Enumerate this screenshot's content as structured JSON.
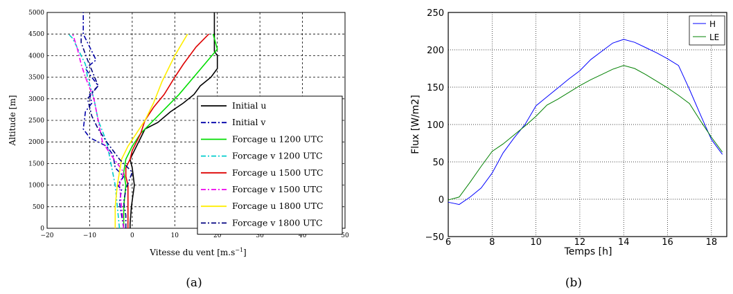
{
  "chart_data": [
    {
      "type": "line",
      "caption": "(a)",
      "xlabel": "Vitesse du vent [m.s",
      "xlabel_sup": "−1",
      "xlabel_end": "]",
      "ylabel": "Altitude [m]",
      "xlim": [
        -20,
        50
      ],
      "ylim": [
        0,
        5000
      ],
      "xticks": [
        "−20",
        "−10",
        "0",
        "10",
        "20",
        "30",
        "40",
        "50"
      ],
      "yticks": [
        "0",
        "500",
        "1000",
        "1500",
        "2000",
        "2500",
        "3000",
        "3500",
        "4000",
        "4500",
        "5000"
      ],
      "grid": true,
      "legend_position": "right",
      "series": [
        {
          "name": "Initial u",
          "color": "#000000",
          "dash": "solid",
          "x": [
            -0.5,
            -0.5,
            -0.2,
            0.5,
            0,
            -0.5,
            0.5,
            2,
            3,
            6,
            9,
            12,
            14.5,
            16,
            18.5,
            20,
            20,
            19.3,
            19.3,
            19.3
          ],
          "y": [
            0,
            100,
            500,
            1000,
            1400,
            1600,
            1800,
            2100,
            2300,
            2450,
            2700,
            2900,
            3100,
            3300,
            3500,
            3700,
            4000,
            4100,
            4500,
            5000
          ]
        },
        {
          "name": "Initial v",
          "color": "#0000aa",
          "dash": "dashdot",
          "x": [
            -2,
            -2.5,
            -3,
            -2.5,
            -3.5,
            -2,
            -4,
            -4.5,
            -6,
            -10,
            -11.5,
            -11,
            -9.5,
            -10,
            -8,
            -11,
            -8.5,
            -10,
            -11.5,
            -11.5
          ],
          "y": [
            0,
            300,
            600,
            900,
            1000,
            1200,
            1400,
            1700,
            1900,
            2100,
            2300,
            2700,
            2900,
            3100,
            3300,
            3700,
            3900,
            4200,
            4500,
            5000
          ]
        },
        {
          "name": "Forcage u 1200 UTC",
          "color": "#00dd00",
          "dash": "solid",
          "x": [
            -2,
            -2,
            -1.5,
            -2,
            -1.5,
            0,
            2,
            5,
            8,
            11,
            14,
            17,
            20,
            19
          ],
          "y": [
            0,
            500,
            1000,
            1300,
            1600,
            1900,
            2200,
            2500,
            2800,
            3100,
            3450,
            3800,
            4150,
            4500
          ]
        },
        {
          "name": "Forcage v 1200 UTC",
          "color": "#00cccc",
          "dash": "dashdot",
          "x": [
            -3,
            -3.5,
            -4,
            -5,
            -6,
            -8,
            -9,
            -10.5,
            -11,
            -12,
            -13,
            -14,
            -15
          ],
          "y": [
            0,
            500,
            1000,
            1500,
            2000,
            2500,
            3000,
            3500,
            3800,
            4000,
            4200,
            4400,
            4500
          ]
        },
        {
          "name": "Forcage u 1500 UTC",
          "color": "#dd0000",
          "dash": "solid",
          "x": [
            -1,
            -1,
            -1,
            -1.5,
            -1.5,
            -0.5,
            0,
            1,
            2,
            3,
            5,
            7.5,
            10,
            12,
            15,
            18
          ],
          "y": [
            0,
            500,
            1000,
            1200,
            1400,
            1600,
            1800,
            2000,
            2200,
            2500,
            2800,
            3100,
            3500,
            3800,
            4200,
            4500
          ]
        },
        {
          "name": "Forcage v 1500 UTC",
          "color": "#ee00ee",
          "dash": "dashdot",
          "x": [
            -2,
            -2.5,
            -3,
            -2,
            -3.5,
            -5,
            -7,
            -8,
            -9,
            -11,
            -12,
            -13,
            -14
          ],
          "y": [
            0,
            500,
            1000,
            1300,
            1500,
            1700,
            2000,
            2500,
            3000,
            3500,
            3800,
            4200,
            4500
          ]
        },
        {
          "name": "Forcage u 1800 UTC",
          "color": "#ffee00",
          "dash": "solid",
          "x": [
            -4,
            -4,
            -3.5,
            -3,
            -2.5,
            -1,
            1,
            3,
            5,
            7,
            10,
            13
          ],
          "y": [
            0,
            500,
            1000,
            1300,
            1600,
            1900,
            2200,
            2500,
            2900,
            3400,
            4000,
            4500
          ]
        },
        {
          "name": "Forcage v 1800 UTC",
          "color": "#000080",
          "dash": "dashdot",
          "x": [
            -1.5,
            -1.5,
            -2,
            -1.5,
            0,
            -3,
            -6,
            -8,
            -9.5,
            -10.5,
            -8,
            -10.5,
            -12,
            -12
          ],
          "y": [
            0,
            300,
            600,
            900,
            1300,
            1600,
            2000,
            2300,
            2600,
            3000,
            3300,
            3900,
            4300,
            4500
          ]
        }
      ]
    },
    {
      "type": "line",
      "caption": "(b)",
      "xlabel": "Temps [h]",
      "ylabel": "Flux [W/m2]",
      "xlim": [
        6,
        18.7
      ],
      "ylim": [
        -50,
        250
      ],
      "xticks": [
        6,
        8,
        10,
        12,
        14,
        16,
        18
      ],
      "yticks": [
        "−50",
        "0",
        "50",
        "100",
        "150",
        "200",
        "250"
      ],
      "grid": true,
      "legend_position": "top-right",
      "series": [
        {
          "name": "H",
          "color": "#0000ff",
          "x": [
            6,
            6.5,
            7,
            7.5,
            8,
            8.5,
            9,
            9.5,
            10,
            10.5,
            11,
            11.5,
            12,
            12.5,
            13,
            13.5,
            14,
            14.5,
            15,
            15.5,
            16,
            16.5,
            17,
            17.5,
            18,
            18.5
          ],
          "y": [
            -4,
            -7,
            3,
            15,
            35,
            62,
            82,
            100,
            125,
            137,
            149,
            161,
            172,
            187,
            198,
            209,
            214,
            210,
            203,
            196,
            188,
            179,
            147,
            113,
            80,
            60
          ]
        },
        {
          "name": "LE",
          "color": "#008000",
          "x": [
            6,
            6.5,
            7,
            7.5,
            8,
            8.5,
            9,
            9.5,
            10,
            10.5,
            11,
            11.5,
            12,
            12.5,
            13,
            13.5,
            14,
            14.5,
            15,
            15.5,
            16,
            16.5,
            17,
            17.5,
            18,
            18.5
          ],
          "y": [
            -1,
            3,
            23,
            44,
            64,
            74,
            86,
            98,
            111,
            126,
            134,
            143,
            152,
            160,
            167,
            174,
            179,
            175,
            167,
            158,
            149,
            139,
            128,
            105,
            83,
            63
          ]
        }
      ]
    }
  ]
}
